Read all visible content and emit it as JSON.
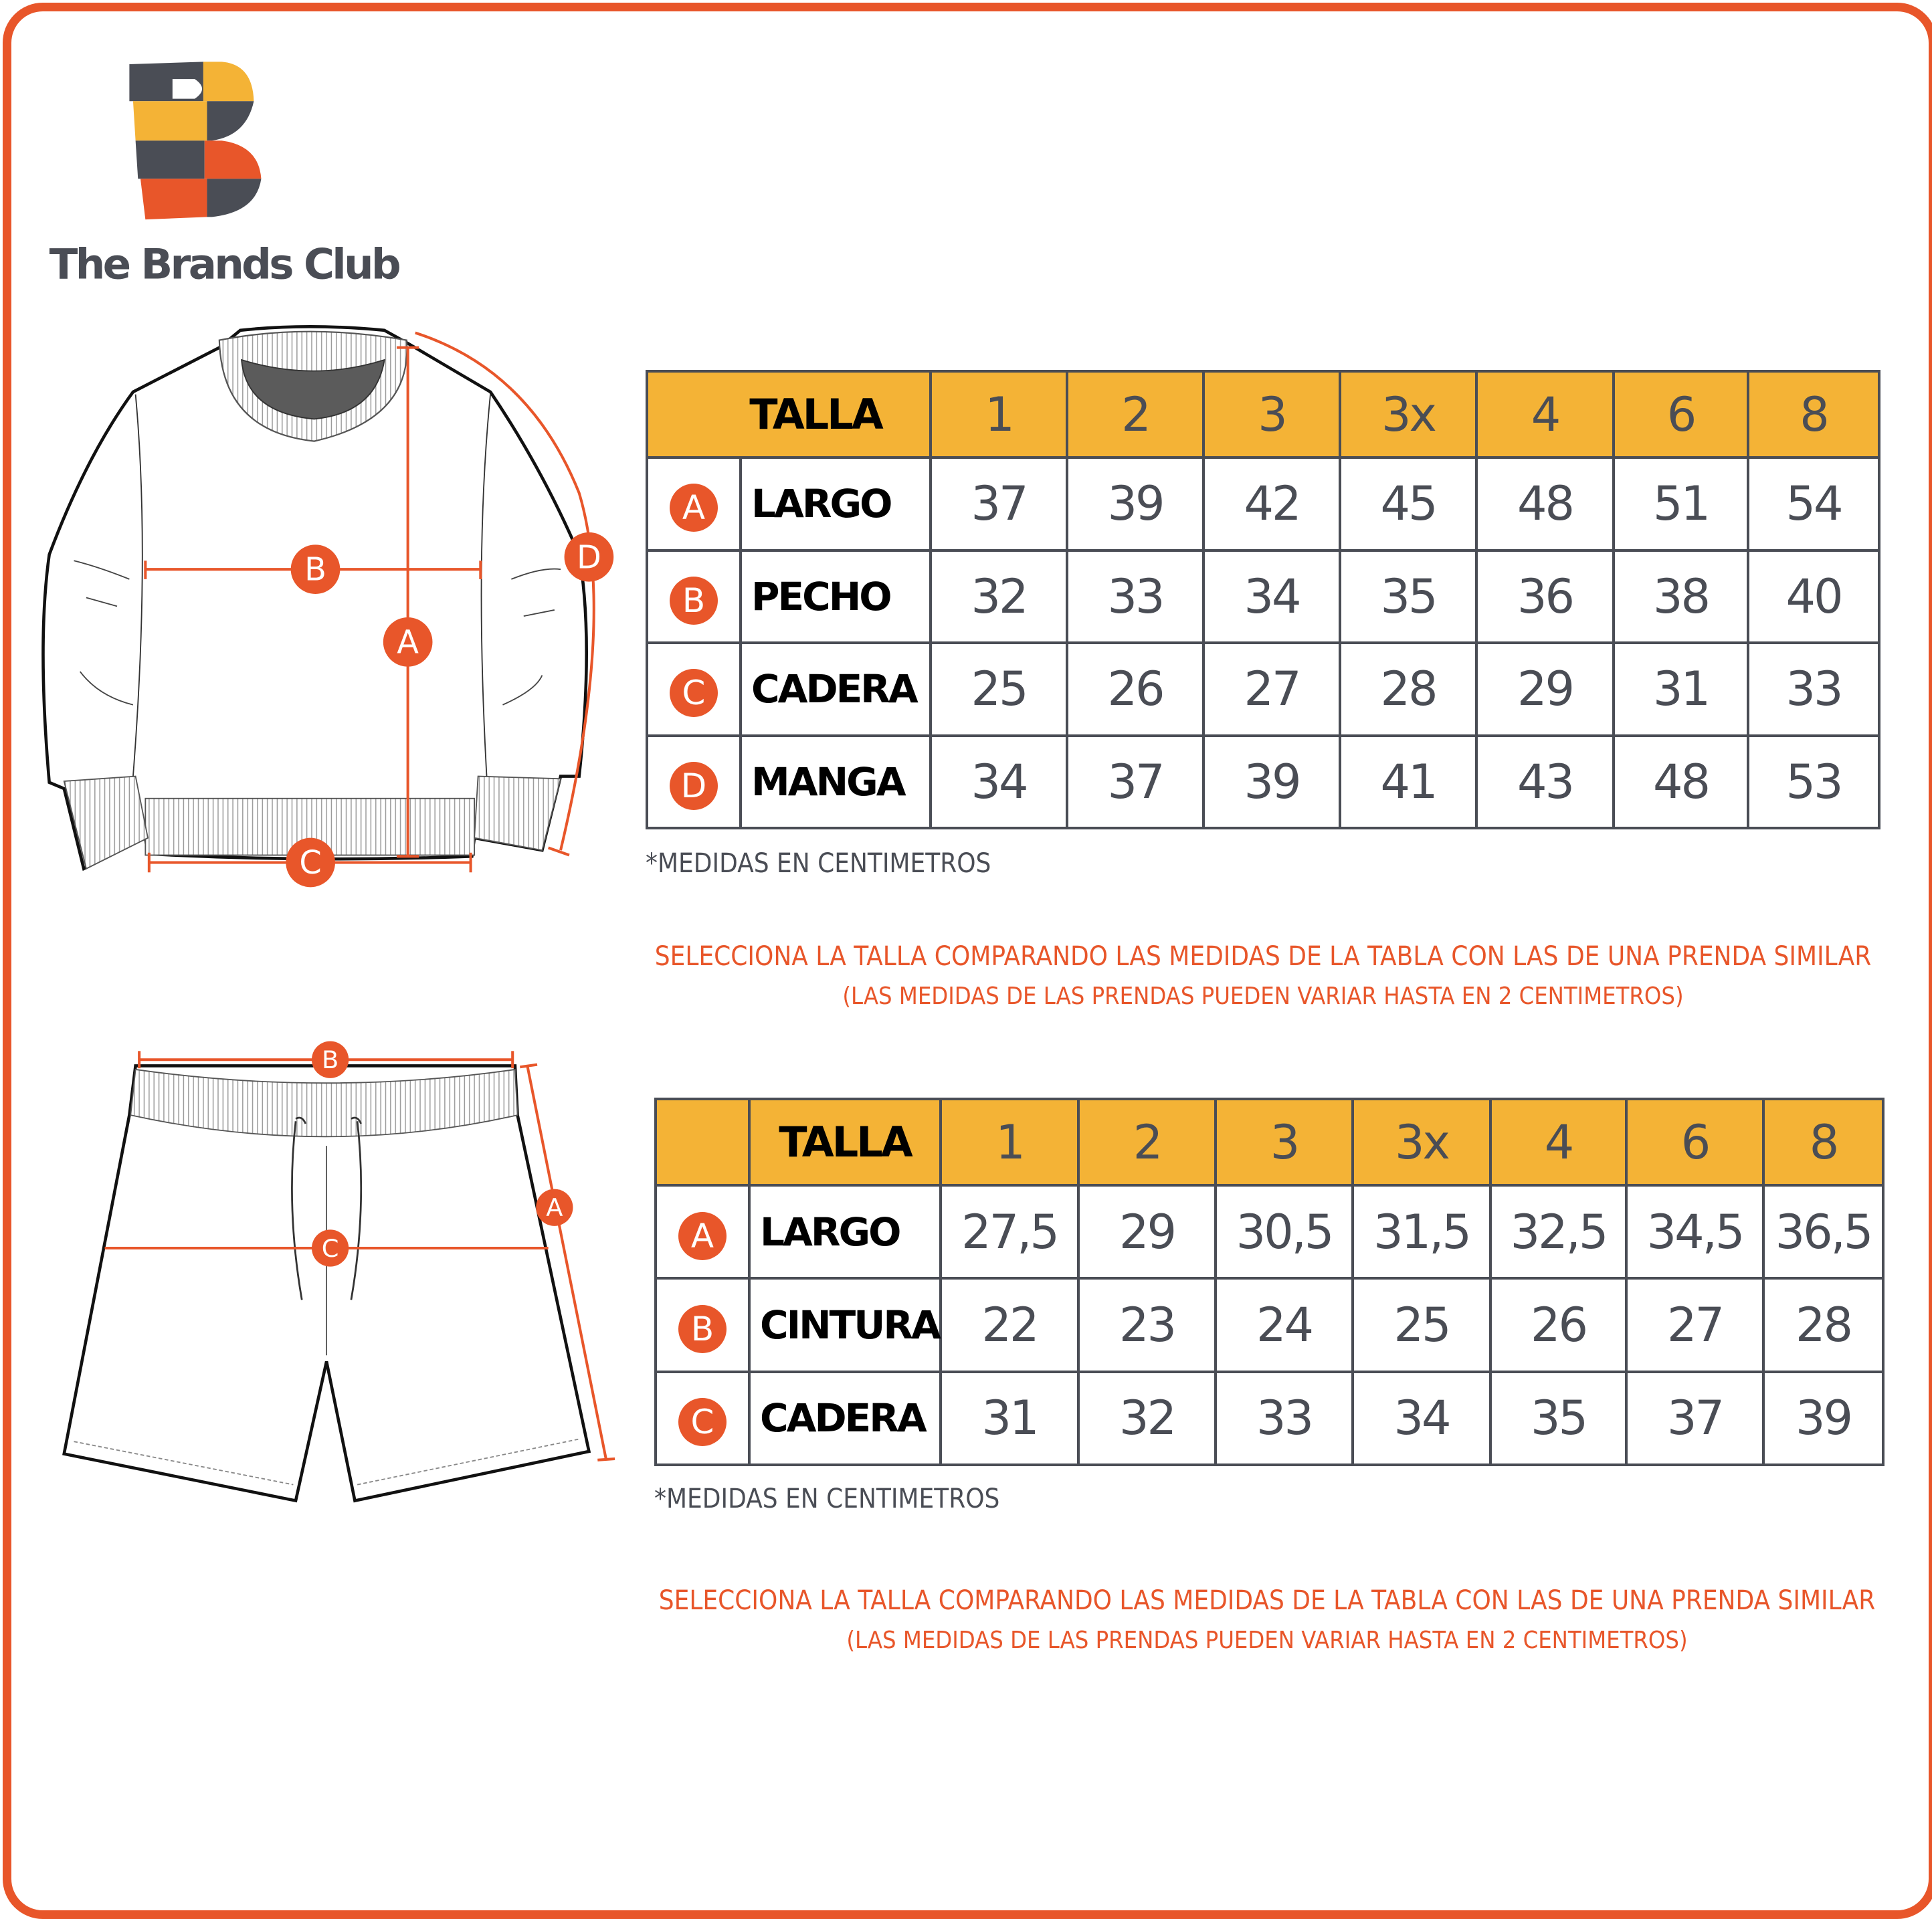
{
  "brand": {
    "name": "The Brands Club",
    "colors": {
      "orange": "#E8562A",
      "yellow": "#F4B336",
      "gray": "#4A4D55"
    }
  },
  "sweater": {
    "badges": [
      "A",
      "B",
      "C",
      "D"
    ],
    "table": {
      "header": "TALLA",
      "sizes": [
        "1",
        "2",
        "3",
        "3x",
        "4",
        "6",
        "8"
      ],
      "rows": [
        {
          "badge": "A",
          "label": "LARGO",
          "values": [
            "37",
            "39",
            "42",
            "45",
            "48",
            "51",
            "54"
          ]
        },
        {
          "badge": "B",
          "label": "PECHO",
          "values": [
            "32",
            "33",
            "34",
            "35",
            "36",
            "38",
            "40"
          ]
        },
        {
          "badge": "C",
          "label": "CADERA",
          "values": [
            "25",
            "26",
            "27",
            "28",
            "29",
            "31",
            "33"
          ]
        },
        {
          "badge": "D",
          "label": "MANGA",
          "values": [
            "34",
            "37",
            "39",
            "41",
            "43",
            "48",
            "53"
          ]
        }
      ]
    },
    "note": "*MEDIDAS EN CENTIMETROS",
    "advice_1": "SELECCIONA LA TALLA COMPARANDO LAS MEDIDAS DE LA TABLA CON LAS DE UNA PRENDA SIMILAR",
    "advice_2": "(LAS MEDIDAS DE LAS PRENDAS PUEDEN VARIAR HASTA EN 2 CENTIMETROS)"
  },
  "shorts": {
    "badges": [
      "A",
      "B",
      "C"
    ],
    "table": {
      "header": "TALLA",
      "sizes": [
        "1",
        "2",
        "3",
        "3x",
        "4",
        "6",
        "8"
      ],
      "rows": [
        {
          "badge": "A",
          "label": "LARGO",
          "values": [
            "27,5",
            "29",
            "30,5",
            "31,5",
            "32,5",
            "34,5",
            "36,5"
          ]
        },
        {
          "badge": "B",
          "label": "CINTURA",
          "values": [
            "22",
            "23",
            "24",
            "25",
            "26",
            "27",
            "28"
          ]
        },
        {
          "badge": "C",
          "label": "CADERA",
          "values": [
            "31",
            "32",
            "33",
            "34",
            "35",
            "37",
            "39"
          ]
        }
      ]
    },
    "note": "*MEDIDAS EN CENTIMETROS",
    "advice_1": "SELECCIONA LA TALLA COMPARANDO LAS MEDIDAS DE LA TABLA CON LAS DE UNA PRENDA SIMILAR",
    "advice_2": "(LAS MEDIDAS DE LAS PRENDAS PUEDEN VARIAR HASTA EN 2 CENTIMETROS)"
  }
}
